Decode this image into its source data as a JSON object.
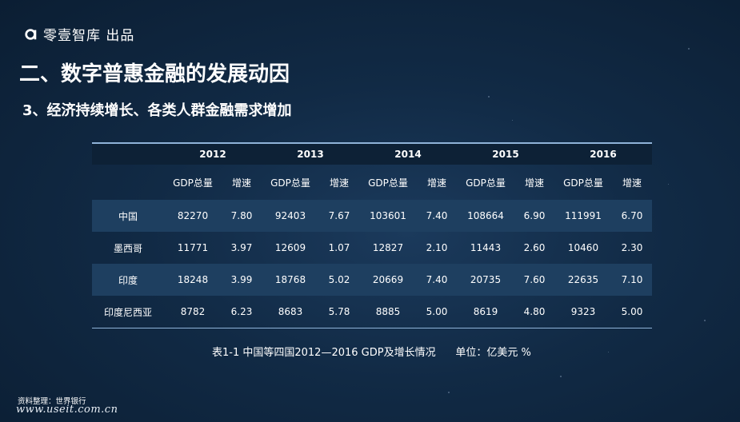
{
  "brand": {
    "name": "零壹智库 出品",
    "icon": "a-logo-icon"
  },
  "title": "二、数字普惠金融的发展动因",
  "subtitle": "3、经济持续增长、各类人群金融需求增加",
  "table": {
    "years": [
      "2012",
      "2013",
      "2014",
      "2015",
      "2016"
    ],
    "sub_headers": [
      "GDP总量",
      "增速"
    ],
    "rows": [
      {
        "name": "中国",
        "values": [
          "82270",
          "7.80",
          "92403",
          "7.67",
          "103601",
          "7.40",
          "108664",
          "6.90",
          "111991",
          "6.70"
        ]
      },
      {
        "name": "墨西哥",
        "values": [
          "11771",
          "3.97",
          "12609",
          "1.07",
          "12827",
          "2.10",
          "11443",
          "2.60",
          "10460",
          "2.30"
        ]
      },
      {
        "name": "印度",
        "values": [
          "18248",
          "3.99",
          "18768",
          "5.02",
          "20669",
          "7.40",
          "20735",
          "7.60",
          "22635",
          "7.10"
        ]
      },
      {
        "name": "印度尼西亚",
        "values": [
          "8782",
          "6.23",
          "8683",
          "5.78",
          "8885",
          "5.00",
          "8619",
          "4.80",
          "9323",
          "5.00"
        ]
      }
    ]
  },
  "caption": "表1-1 中国等四国2012—2016 GDP及增长情况      单位：亿美元 %",
  "source": "资料整理：世界银行",
  "watermark": "www.useit.com.cn",
  "colors": {
    "background": "#112a45",
    "shaded_row": "#1e3f60",
    "rule": "#8fb3d8"
  }
}
